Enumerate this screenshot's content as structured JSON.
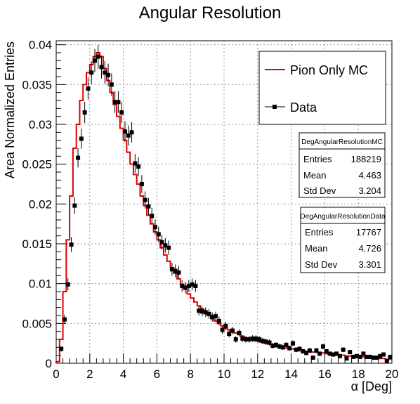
{
  "chart_data": {
    "type": "histogram",
    "title": "Angular Resolution",
    "xlabel": "α [Deg]",
    "ylabel": "Area Normalized Entries",
    "xlim": [
      0,
      20
    ],
    "ylim": [
      0,
      0.0405
    ],
    "grid": true,
    "x_ticks": [
      0,
      2,
      4,
      6,
      8,
      10,
      12,
      14,
      16,
      18,
      20
    ],
    "x_tick_labels": [
      "0",
      "2",
      "4",
      "6",
      "8",
      "10",
      "12",
      "14",
      "16",
      "18",
      "20"
    ],
    "y_ticks": [
      0,
      0.005,
      0.01,
      0.015,
      0.02,
      0.025,
      0.03,
      0.035,
      0.04
    ],
    "y_tick_labels": [
      "0",
      "0.005",
      "0.01",
      "0.015",
      "0.02",
      "0.025",
      "0.03",
      "0.035",
      "0.04"
    ],
    "bin_width": 0.2,
    "series": [
      {
        "name": "Pion Only MC",
        "style": "step",
        "color": "#dd0000",
        "values": [
          0.0002,
          0.003,
          0.009,
          0.0155,
          0.021,
          0.027,
          0.03,
          0.033,
          0.035,
          0.0365,
          0.0375,
          0.0385,
          0.039,
          0.0385,
          0.037,
          0.0355,
          0.034,
          0.0325,
          0.031,
          0.0295,
          0.028,
          0.0265,
          0.025,
          0.0237,
          0.0225,
          0.021,
          0.0198,
          0.0186,
          0.0175,
          0.0165,
          0.0155,
          0.0145,
          0.0136,
          0.0128,
          0.012,
          0.0113,
          0.0106,
          0.0099,
          0.0093,
          0.0087,
          0.0082,
          0.0077,
          0.0072,
          0.0068,
          0.0064,
          0.006,
          0.0056,
          0.0053,
          0.005,
          0.0047,
          0.0044,
          0.0042,
          0.004,
          0.0038,
          0.0036,
          0.0034,
          0.0032,
          0.0031,
          0.0029,
          0.0028,
          0.0027,
          0.0026,
          0.0025,
          0.0024,
          0.0023,
          0.0022,
          0.0021,
          0.002,
          0.0019,
          0.0019,
          0.0018,
          0.0017,
          0.0016,
          0.0016,
          0.0015,
          0.0015,
          0.0014,
          0.0014,
          0.0013,
          0.0013,
          0.0012,
          0.0012,
          0.0011,
          0.0011,
          0.001,
          0.001,
          0.0009,
          0.0009,
          0.0009,
          0.0008,
          0.0008,
          0.0008,
          0.0007,
          0.0007,
          0.0007,
          0.0006,
          0.0006,
          0.0006,
          0.0005,
          0.0005
        ]
      },
      {
        "name": "Data",
        "style": "markers-errorbars",
        "color": "#000000",
        "values": [
          0,
          0.0018,
          0.0055,
          0.0099,
          0.0149,
          0.0198,
          0.0258,
          0.0282,
          0.0315,
          0.0345,
          0.0365,
          0.038,
          0.0385,
          0.0372,
          0.0365,
          0.0362,
          0.035,
          0.0328,
          0.0328,
          0.0315,
          0.0291,
          0.0286,
          0.029,
          0.0251,
          0.0247,
          0.0225,
          0.0205,
          0.0197,
          0.0185,
          0.0171,
          0.0162,
          0.0152,
          0.0148,
          0.0145,
          0.0118,
          0.0116,
          0.0114,
          0.0097,
          0.0095,
          0.0097,
          0.0099,
          0.0097,
          0.0066,
          0.0065,
          0.0064,
          0.0062,
          0.0058,
          0.0059,
          0.0053,
          0.0042,
          0.0047,
          0.0037,
          0.0041,
          0.003,
          0.0038,
          0.0031,
          0.003,
          0.003,
          0.0031,
          0.0031,
          0.003,
          0.0028,
          0.0027,
          0.0026,
          0.0022,
          0.0023,
          0.0021,
          0.002,
          0.0023,
          0.0019,
          0.0025,
          0.0017,
          0.0018,
          0.0015,
          0.0013,
          0.0016,
          0.0007,
          0.0016,
          0.0012,
          0.0021,
          0.0015,
          0.0012,
          0.0011,
          0.0012,
          0.0009,
          0.0017,
          0.0006,
          0.0014,
          0.0008,
          0.0009,
          0.0008,
          0.0012,
          0.0008,
          0.0008,
          0.0007,
          0.0007,
          0.0009,
          0.0011,
          0.0003,
          0.0008
        ]
      }
    ],
    "legend": {
      "position": "top-right",
      "entries": [
        {
          "label": "Pion Only MC",
          "style": "line",
          "color": "#dd0000"
        },
        {
          "label": "Data",
          "style": "marker",
          "color": "#000000"
        }
      ]
    },
    "stats_boxes": [
      {
        "title": "DegAngularResolutionMC",
        "rows": [
          {
            "label": "Entries",
            "value": "188219"
          },
          {
            "label": "Mean",
            "value": "4.463"
          },
          {
            "label": "Std Dev",
            "value": "3.204"
          }
        ]
      },
      {
        "title": "DegAngularResolutionData",
        "rows": [
          {
            "label": "Entries",
            "value": "17767"
          },
          {
            "label": "Mean",
            "value": "4.726"
          },
          {
            "label": "Std Dev",
            "value": "3.301"
          }
        ]
      }
    ]
  }
}
